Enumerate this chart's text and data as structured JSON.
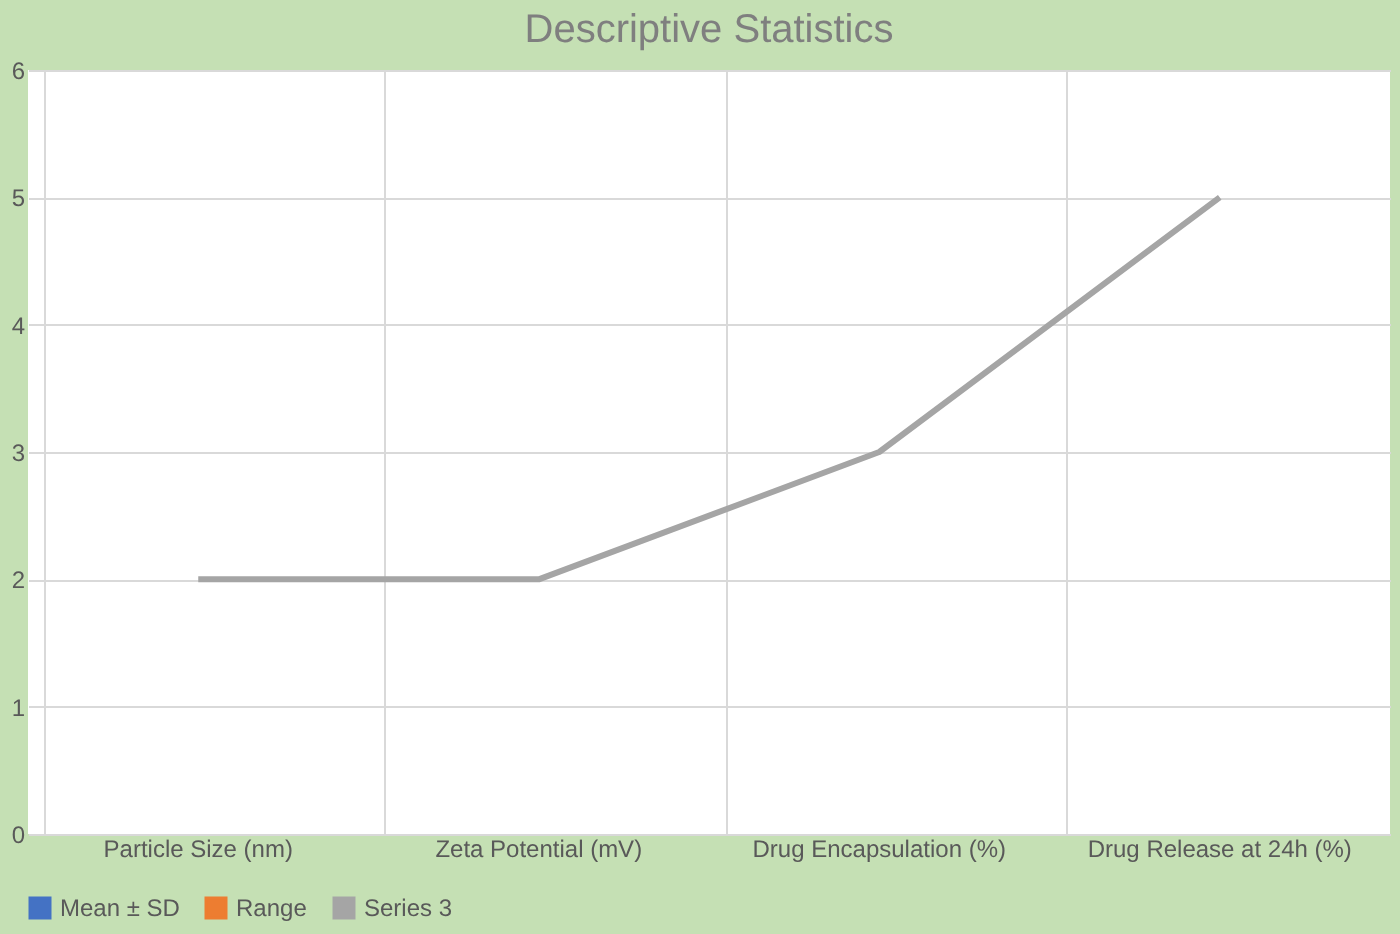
{
  "chart_data": {
    "type": "line",
    "title": "Descriptive Statistics",
    "categories": [
      "Particle Size (nm)",
      "Zeta Potential (mV)",
      "Drug Encapsulation (%)",
      "Drug Release at 24h (%)"
    ],
    "series": [
      {
        "name": "Mean ± SD",
        "color": "#4472c4",
        "type": "bar",
        "values": [
          null,
          null,
          null,
          null
        ]
      },
      {
        "name": "Range",
        "color": "#ed7d31",
        "type": "bar",
        "values": [
          null,
          null,
          null,
          null
        ]
      },
      {
        "name": "Series 3",
        "color": "#a5a5a5",
        "values": [
          2,
          2,
          3,
          5
        ]
      }
    ],
    "ylim": [
      0,
      6
    ],
    "yticks": [
      0,
      1,
      2,
      3,
      4,
      5,
      6
    ],
    "grid": true,
    "legend": "bottom"
  }
}
